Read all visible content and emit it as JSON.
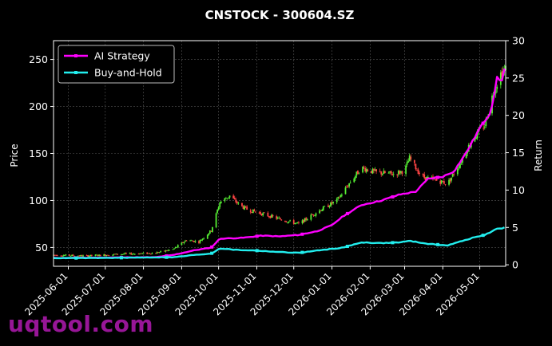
{
  "chart_data": {
    "type": "candlestick-with-lines",
    "title": "CNSTOCK - 300604.SZ",
    "xlabel": "",
    "ylabel_left": "Price",
    "ylabel_right": "Return",
    "ylim_left": [
      30,
      270
    ],
    "ylim_right": [
      -0.2,
      30
    ],
    "yticks_left": [
      50,
      100,
      150,
      200,
      250
    ],
    "yticks_right": [
      0,
      5,
      10,
      15,
      20,
      25,
      30
    ],
    "xticks": [
      "2025-06-01",
      "2025-07-01",
      "2025-08-01",
      "2025-09-01",
      "2025-10-01",
      "2025-11-01",
      "2025-12-01",
      "2026-01-01",
      "2026-02-01",
      "2026-03-01",
      "2026-04-01",
      "2026-05-01"
    ],
    "x_range": [
      "2025-05-20",
      "2026-05-22"
    ],
    "grid": true,
    "legend_position": "top-left",
    "colors": {
      "up": "#55ee33",
      "down": "#ff4444",
      "ai": "#ff00ff",
      "bh": "#22eeee"
    },
    "price_points": [
      [
        "2025-05-20",
        42
      ],
      [
        "2025-06-15",
        41
      ],
      [
        "2025-07-15",
        43
      ],
      [
        "2025-08-10",
        44
      ],
      [
        "2025-08-25",
        48
      ],
      [
        "2025-09-05",
        58
      ],
      [
        "2025-09-15",
        56
      ],
      [
        "2025-09-25",
        68
      ],
      [
        "2025-10-02",
        98
      ],
      [
        "2025-10-10",
        105
      ],
      [
        "2025-10-18",
        95
      ],
      [
        "2025-10-25",
        90
      ],
      [
        "2025-11-05",
        86
      ],
      [
        "2025-11-20",
        80
      ],
      [
        "2025-12-05",
        75
      ],
      [
        "2025-12-20",
        88
      ],
      [
        "2026-01-05",
        100
      ],
      [
        "2026-01-15",
        118
      ],
      [
        "2026-01-25",
        135
      ],
      [
        "2026-02-05",
        130
      ],
      [
        "2026-02-20",
        128
      ],
      [
        "2026-03-01",
        132
      ],
      [
        "2026-03-05",
        145
      ],
      [
        "2026-03-15",
        125
      ],
      [
        "2026-03-25",
        122
      ],
      [
        "2026-04-05",
        118
      ],
      [
        "2026-04-15",
        140
      ],
      [
        "2026-04-25",
        165
      ],
      [
        "2026-05-05",
        180
      ],
      [
        "2026-05-12",
        215
      ],
      [
        "2026-05-18",
        235
      ],
      [
        "2026-05-22",
        240
      ]
    ],
    "series": [
      {
        "name": "AI Strategy",
        "points": [
          [
            "2025-05-20",
            0.9
          ],
          [
            "2025-06-20",
            0.95
          ],
          [
            "2025-07-20",
            1.0
          ],
          [
            "2025-08-10",
            1.0
          ],
          [
            "2025-08-25",
            1.3
          ],
          [
            "2025-09-10",
            1.9
          ],
          [
            "2025-09-25",
            2.3
          ],
          [
            "2025-10-02",
            3.5
          ],
          [
            "2025-10-20",
            3.6
          ],
          [
            "2025-11-05",
            3.9
          ],
          [
            "2025-11-20",
            3.8
          ],
          [
            "2025-12-05",
            4.0
          ],
          [
            "2025-12-20",
            4.5
          ],
          [
            "2026-01-01",
            5.3
          ],
          [
            "2026-01-10",
            6.5
          ],
          [
            "2026-01-25",
            8.0
          ],
          [
            "2026-02-10",
            8.6
          ],
          [
            "2026-02-25",
            9.4
          ],
          [
            "2026-03-10",
            9.8
          ],
          [
            "2026-03-20",
            11.5
          ],
          [
            "2026-04-01",
            11.8
          ],
          [
            "2026-04-10",
            12.5
          ],
          [
            "2026-04-20",
            15.0
          ],
          [
            "2026-05-01",
            18.3
          ],
          [
            "2026-05-10",
            20.5
          ],
          [
            "2026-05-15",
            25.0
          ],
          [
            "2026-05-20",
            24.5
          ],
          [
            "2026-05-22",
            28.3
          ]
        ]
      },
      {
        "name": "Buy-and-Hold",
        "points": [
          [
            "2025-05-20",
            0.9
          ],
          [
            "2025-06-20",
            0.9
          ],
          [
            "2025-07-20",
            0.95
          ],
          [
            "2025-08-15",
            1.0
          ],
          [
            "2025-08-25",
            1.0
          ],
          [
            "2025-09-10",
            1.3
          ],
          [
            "2025-09-25",
            1.5
          ],
          [
            "2025-10-02",
            2.2
          ],
          [
            "2025-10-15",
            2.0
          ],
          [
            "2025-11-01",
            1.9
          ],
          [
            "2025-11-20",
            1.7
          ],
          [
            "2025-12-05",
            1.6
          ],
          [
            "2025-12-25",
            2.0
          ],
          [
            "2026-01-10",
            2.3
          ],
          [
            "2026-01-25",
            3.0
          ],
          [
            "2026-02-10",
            2.9
          ],
          [
            "2026-02-25",
            3.0
          ],
          [
            "2026-03-05",
            3.2
          ],
          [
            "2026-03-20",
            2.8
          ],
          [
            "2026-04-05",
            2.6
          ],
          [
            "2026-04-15",
            3.1
          ],
          [
            "2026-04-25",
            3.6
          ],
          [
            "2026-05-05",
            4.0
          ],
          [
            "2026-05-15",
            4.8
          ],
          [
            "2026-05-20",
            4.9
          ],
          [
            "2026-05-22",
            5.1
          ]
        ]
      }
    ]
  },
  "watermark": "uqtool.com"
}
